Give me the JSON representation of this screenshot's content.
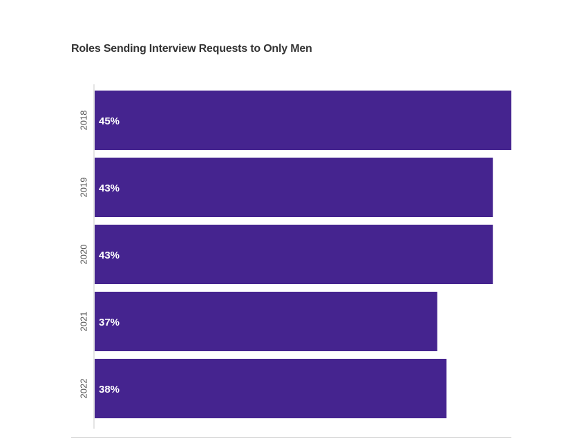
{
  "chart_data": {
    "type": "bar",
    "orientation": "horizontal",
    "title": "Roles Sending Interview Requests to Only Men",
    "xlabel": "",
    "ylabel": "",
    "categories": [
      "2018",
      "2019",
      "2020",
      "2021",
      "2022"
    ],
    "values": [
      45,
      43,
      43,
      37,
      38
    ],
    "value_labels": [
      "45%",
      "43%",
      "43%",
      "37%",
      "38%"
    ],
    "unit": "%",
    "xlim": [
      0,
      45
    ],
    "grid": false,
    "legend": "none",
    "bar_color": "#45248f",
    "label_color": "#ffffff",
    "axis_color": "#c8c8c8",
    "tick_label_color": "#555555"
  }
}
